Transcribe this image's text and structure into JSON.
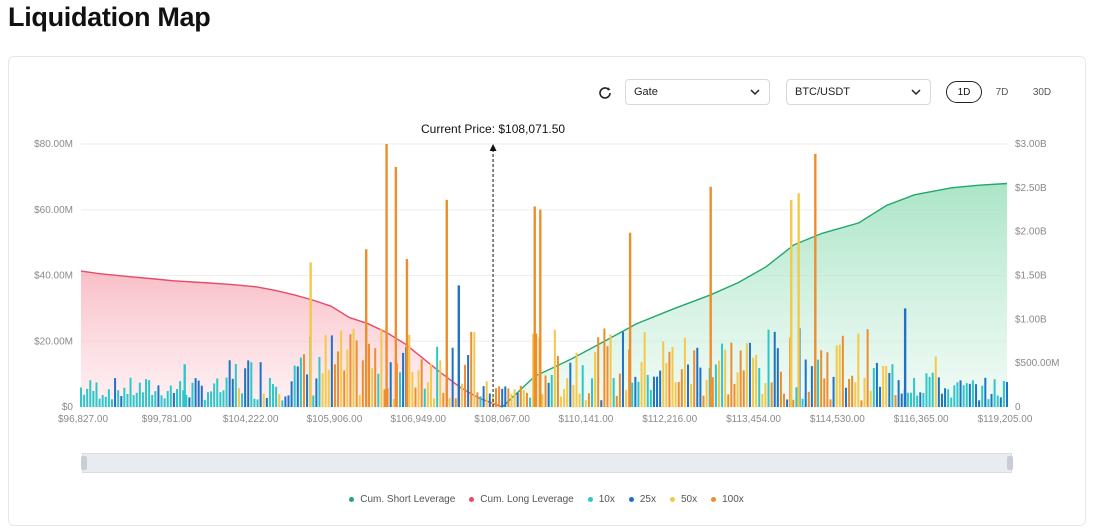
{
  "page": {
    "title": "Liquidation Map"
  },
  "controls": {
    "exchange": "Gate",
    "pair": "BTC/USDT",
    "ranges": [
      "1D",
      "7D",
      "30D"
    ],
    "selected_range": "1D"
  },
  "legend": [
    {
      "name": "Cum. Short Leverage",
      "color": "#22a86b"
    },
    {
      "name": "Cum. Long Leverage",
      "color": "#e64c65"
    },
    {
      "name": "10x",
      "color": "#2ec7c9"
    },
    {
      "name": "25x",
      "color": "#1f72c4"
    },
    {
      "name": "50x",
      "color": "#f4c84a"
    },
    {
      "name": "100x",
      "color": "#ee8d2e"
    }
  ],
  "chart_data": {
    "type": "bar",
    "title": "",
    "annotation": {
      "label": "Current Price: $108,071.50",
      "price": 108071.5
    },
    "x_tick_labels": [
      "$96,827.00",
      "$99,781.00",
      "$104,222.00",
      "$105,906.00",
      "$106,949.00",
      "$108,067.00",
      "$110,141.00",
      "$112,216.00",
      "$113,454.00",
      "$114,530.00",
      "$116,365.00",
      "$119,205.00"
    ],
    "y_left": {
      "ticks": [
        "$0",
        "$20.00M",
        "$40.00M",
        "$60.00M",
        "$80.00M"
      ],
      "range": [
        0,
        80
      ]
    },
    "y_right": {
      "ticks": [
        "0",
        "$500.00M",
        "$1.00B",
        "$1.50B",
        "$2.00B",
        "$2.50B",
        "$3.00B"
      ],
      "range": [
        0,
        3.0
      ]
    },
    "units": {
      "left": "$M",
      "right": "$B"
    },
    "bar_colors": {
      "10x": "#2ec7c9",
      "25x": "#1f72c4",
      "50x": "#f4c84a",
      "100x": "#ee8d2e"
    },
    "series": [
      {
        "name": "Cum. Long Leverage",
        "axis": "right",
        "color": "#e64c65",
        "points": [
          [
            0.0,
            1.55
          ],
          [
            0.02,
            1.52
          ],
          [
            0.05,
            1.49
          ],
          [
            0.08,
            1.46
          ],
          [
            0.1,
            1.44
          ],
          [
            0.13,
            1.42
          ],
          [
            0.16,
            1.4
          ],
          [
            0.19,
            1.37
          ],
          [
            0.21,
            1.33
          ],
          [
            0.23,
            1.28
          ],
          [
            0.25,
            1.22
          ],
          [
            0.27,
            1.15
          ],
          [
            0.29,
            1.02
          ],
          [
            0.31,
            0.95
          ],
          [
            0.33,
            0.85
          ],
          [
            0.35,
            0.72
          ],
          [
            0.37,
            0.55
          ],
          [
            0.39,
            0.38
          ],
          [
            0.41,
            0.22
          ],
          [
            0.43,
            0.1
          ],
          [
            0.45,
            0.02
          ],
          [
            0.455,
            0.0
          ]
        ]
      },
      {
        "name": "Cum. Short Leverage",
        "axis": "right",
        "color": "#22a86b",
        "points": [
          [
            0.455,
            0.0
          ],
          [
            0.47,
            0.15
          ],
          [
            0.49,
            0.35
          ],
          [
            0.51,
            0.45
          ],
          [
            0.53,
            0.55
          ],
          [
            0.56,
            0.72
          ],
          [
            0.6,
            0.95
          ],
          [
            0.64,
            1.12
          ],
          [
            0.68,
            1.28
          ],
          [
            0.71,
            1.42
          ],
          [
            0.74,
            1.6
          ],
          [
            0.77,
            1.85
          ],
          [
            0.8,
            1.98
          ],
          [
            0.84,
            2.1
          ],
          [
            0.87,
            2.3
          ],
          [
            0.9,
            2.42
          ],
          [
            0.94,
            2.5
          ],
          [
            0.97,
            2.53
          ],
          [
            1.0,
            2.55
          ]
        ]
      }
    ],
    "bars_sample": [
      {
        "level": "100x",
        "x": 0.33,
        "value": 80
      },
      {
        "level": "100x",
        "x": 0.34,
        "value": 73
      },
      {
        "level": "100x",
        "x": 0.308,
        "value": 48
      },
      {
        "level": "100x",
        "x": 0.395,
        "value": 63
      },
      {
        "level": "100x",
        "x": 0.352,
        "value": 45
      },
      {
        "level": "50x",
        "x": 0.248,
        "value": 44
      },
      {
        "level": "25x",
        "x": 0.408,
        "value": 37
      },
      {
        "level": "100x",
        "x": 0.49,
        "value": 61
      },
      {
        "level": "100x",
        "x": 0.496,
        "value": 60
      },
      {
        "level": "100x",
        "x": 0.593,
        "value": 53
      },
      {
        "level": "100x",
        "x": 0.68,
        "value": 67
      },
      {
        "level": "50x",
        "x": 0.767,
        "value": 63
      },
      {
        "level": "100x",
        "x": 0.793,
        "value": 77
      },
      {
        "level": "50x",
        "x": 0.775,
        "value": 65
      },
      {
        "level": "25x",
        "x": 0.89,
        "value": 30
      },
      {
        "level": "10x",
        "x": 0.112,
        "value": 13
      }
    ]
  }
}
